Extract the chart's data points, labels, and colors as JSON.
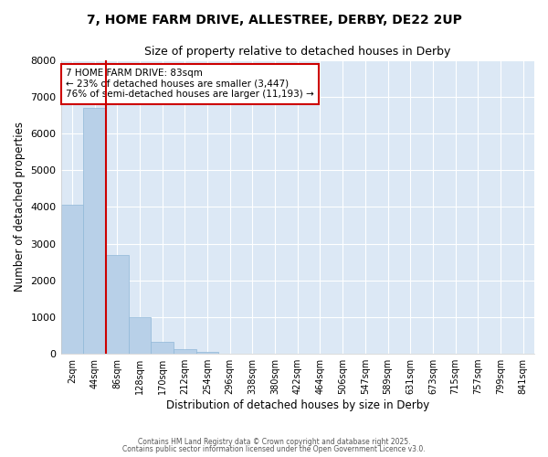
{
  "title1": "7, HOME FARM DRIVE, ALLESTREE, DERBY, DE22 2UP",
  "title2": "Size of property relative to detached houses in Derby",
  "xlabel": "Distribution of detached houses by size in Derby",
  "ylabel": "Number of detached properties",
  "categories": [
    "2sqm",
    "44sqm",
    "86sqm",
    "128sqm",
    "170sqm",
    "212sqm",
    "254sqm",
    "296sqm",
    "338sqm",
    "380sqm",
    "422sqm",
    "464sqm",
    "506sqm",
    "547sqm",
    "589sqm",
    "631sqm",
    "673sqm",
    "715sqm",
    "757sqm",
    "799sqm",
    "841sqm"
  ],
  "values": [
    4050,
    6700,
    2700,
    1000,
    330,
    130,
    50,
    10,
    0,
    0,
    0,
    0,
    0,
    0,
    0,
    0,
    0,
    0,
    0,
    0,
    0
  ],
  "bar_color": "#b8d0e8",
  "bar_edge_color": "#90b8d8",
  "vline_x_index": 2,
  "vline_color": "#cc0000",
  "annotation_text": "7 HOME FARM DRIVE: 83sqm\n← 23% of detached houses are smaller (3,447)\n76% of semi-detached houses are larger (11,193) →",
  "annotation_box_color": "#cc0000",
  "ylim": [
    0,
    8000
  ],
  "yticks": [
    0,
    1000,
    2000,
    3000,
    4000,
    5000,
    6000,
    7000,
    8000
  ],
  "plot_bg_color": "#dce8f5",
  "fig_bg_color": "#ffffff",
  "grid_color": "#ffffff",
  "footer1": "Contains HM Land Registry data © Crown copyright and database right 2025.",
  "footer2": "Contains public sector information licensed under the Open Government Licence v3.0."
}
